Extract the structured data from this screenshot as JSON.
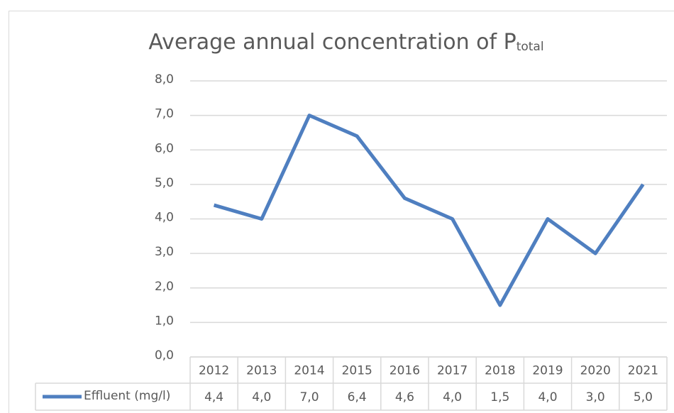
{
  "chart_data": {
    "type": "line",
    "title": "Average annual concentration of P",
    "title_subscript": "total",
    "categories": [
      "2012",
      "2013",
      "2014",
      "2015",
      "2016",
      "2017",
      "2018",
      "2019",
      "2020",
      "2021"
    ],
    "series": [
      {
        "name": "Effluent (mg/l)",
        "color": "#4f7fc0",
        "values": [
          4.4,
          4.0,
          7.0,
          6.4,
          4.6,
          4.0,
          1.5,
          4.0,
          3.0,
          5.0
        ],
        "value_labels": [
          "4,4",
          "4,0",
          "7,0",
          "6,4",
          "4,6",
          "4,0",
          "1,5",
          "4,0",
          "3,0",
          "5,0"
        ]
      }
    ],
    "ylim": [
      0,
      8
    ],
    "yticks": [
      {
        "value": 0,
        "label": "0,0"
      },
      {
        "value": 1,
        "label": "1,0"
      },
      {
        "value": 2,
        "label": "2,0"
      },
      {
        "value": 3,
        "label": "3,0"
      },
      {
        "value": 4,
        "label": "4,0"
      },
      {
        "value": 5,
        "label": "5,0"
      },
      {
        "value": 6,
        "label": "6,0"
      },
      {
        "value": 7,
        "label": "7,0"
      },
      {
        "value": 8,
        "label": "8,0"
      }
    ],
    "grid": true,
    "data_table": true
  }
}
